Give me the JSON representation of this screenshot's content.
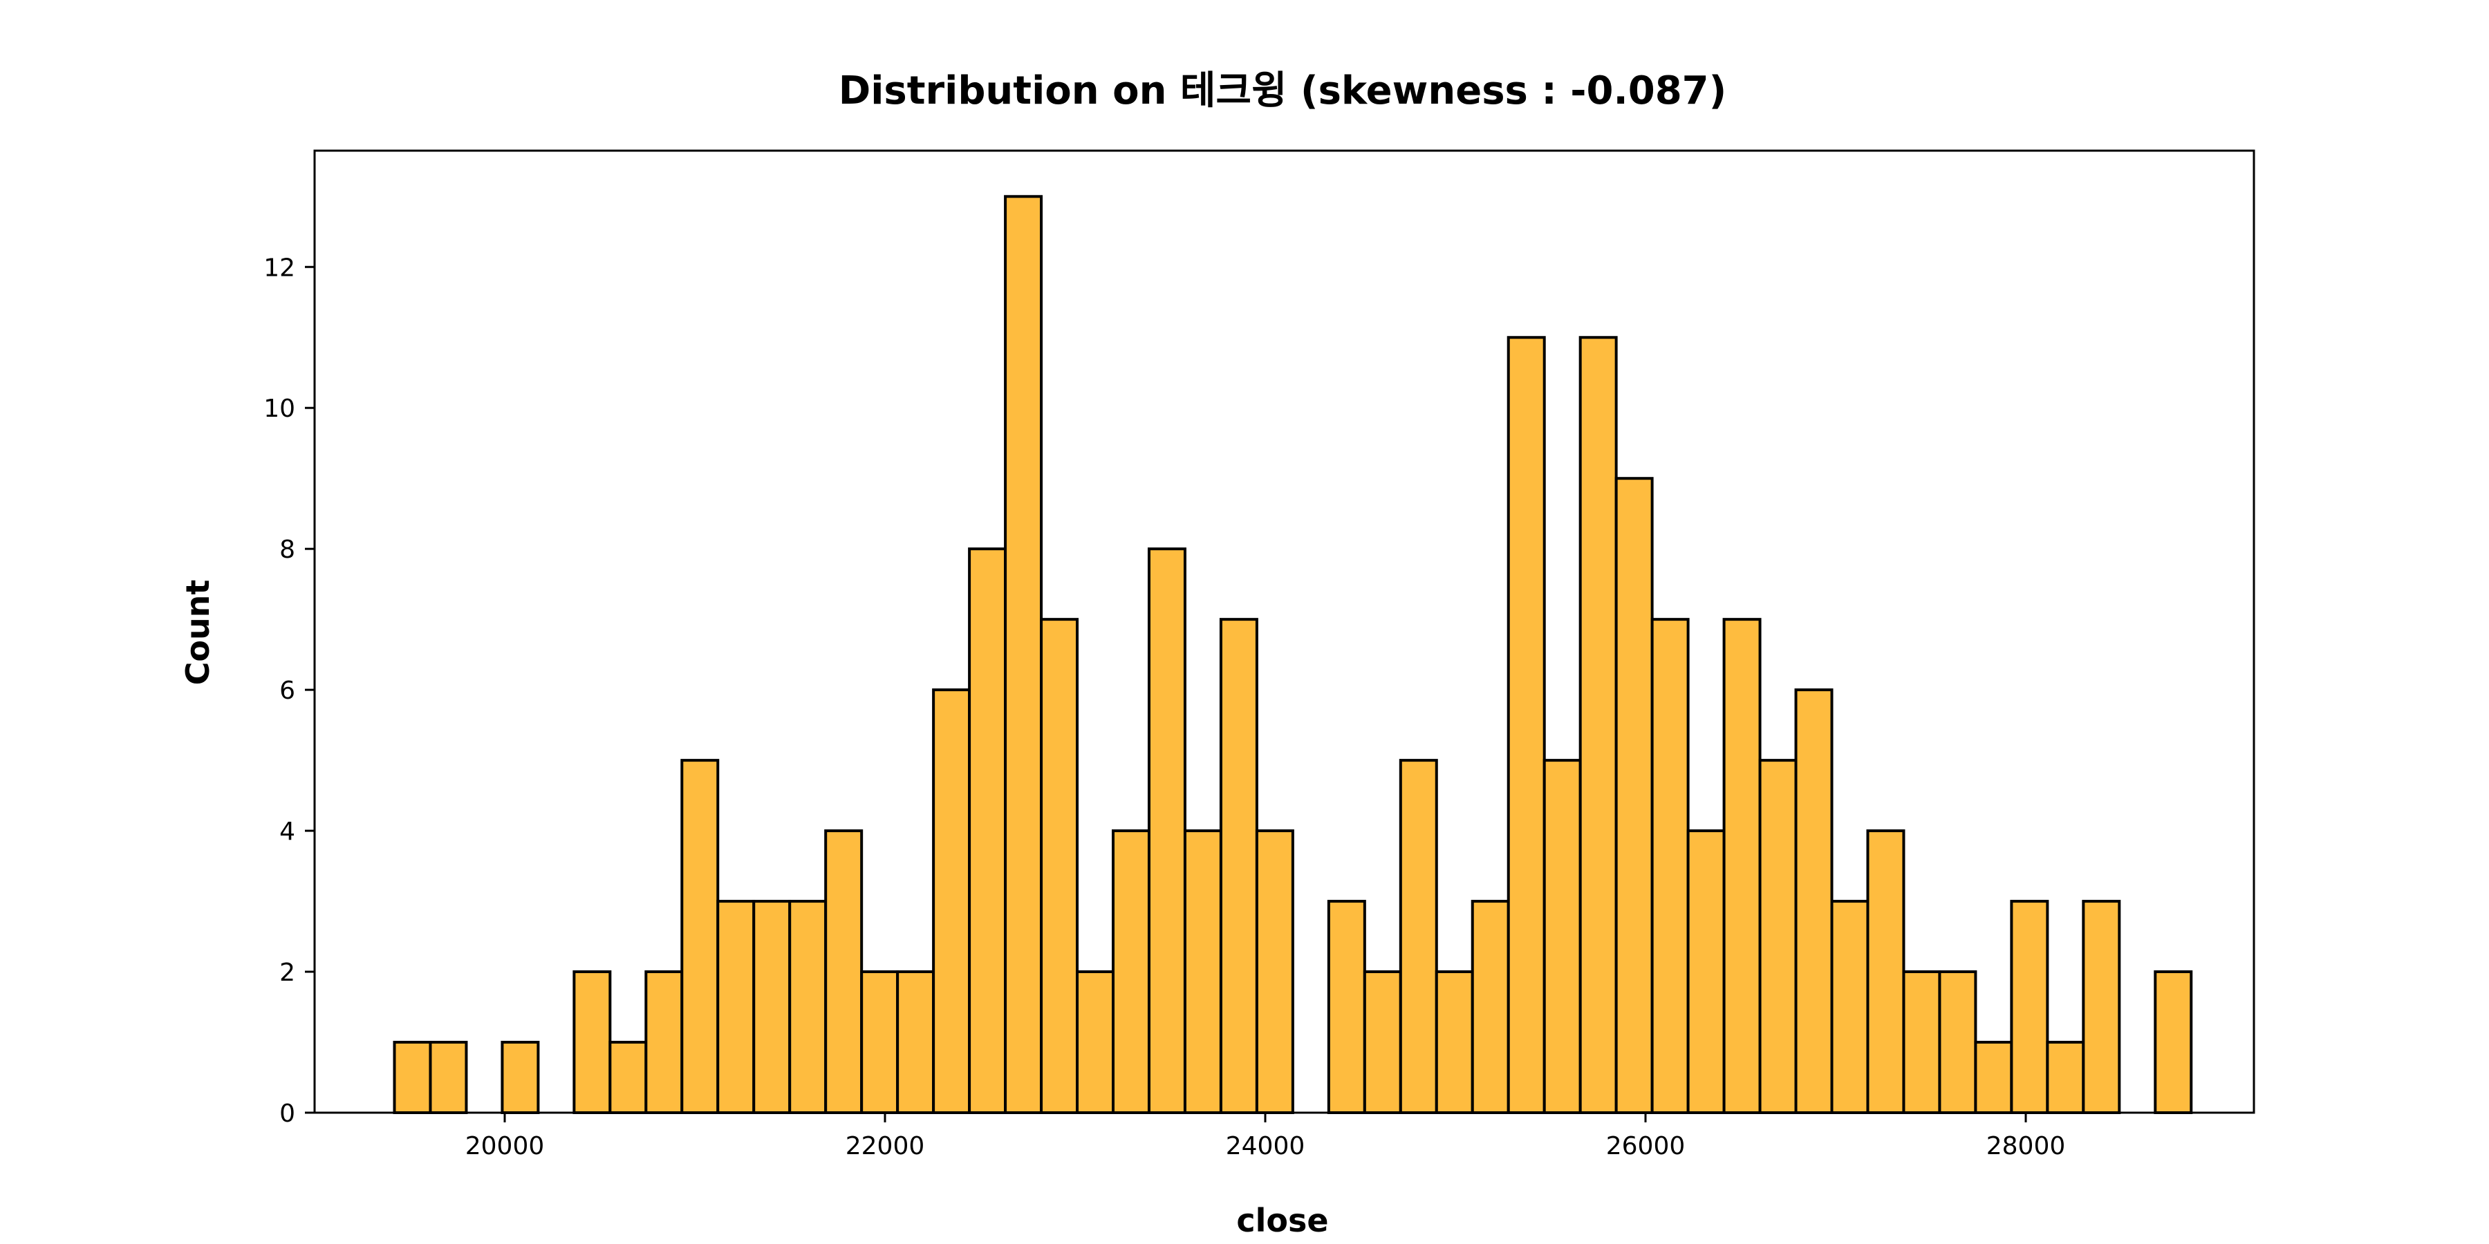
{
  "chart_data": {
    "type": "bar",
    "title": "Distribution on 테크윙 (skewness : -0.087)",
    "xlabel": "close",
    "ylabel": "Count",
    "bar_color": "#febc3f",
    "edge_color": "#000000",
    "grid": false,
    "xlim": [
      19000,
      29200
    ],
    "ylim": [
      0,
      13.65
    ],
    "xticks": [
      20000,
      22000,
      24000,
      26000,
      28000
    ],
    "yticks": [
      0,
      2,
      4,
      6,
      8,
      10,
      12
    ],
    "bin_start": 19420,
    "bin_width": 189,
    "values": [
      1,
      1,
      0,
      1,
      0,
      2,
      1,
      2,
      5,
      3,
      3,
      3,
      4,
      2,
      2,
      6,
      8,
      13,
      7,
      2,
      4,
      8,
      4,
      7,
      4,
      0,
      3,
      2,
      5,
      2,
      3,
      11,
      5,
      11,
      9,
      7,
      4,
      7,
      5,
      6,
      3,
      4,
      2,
      2,
      1,
      3,
      1,
      3,
      0,
      2
    ]
  }
}
